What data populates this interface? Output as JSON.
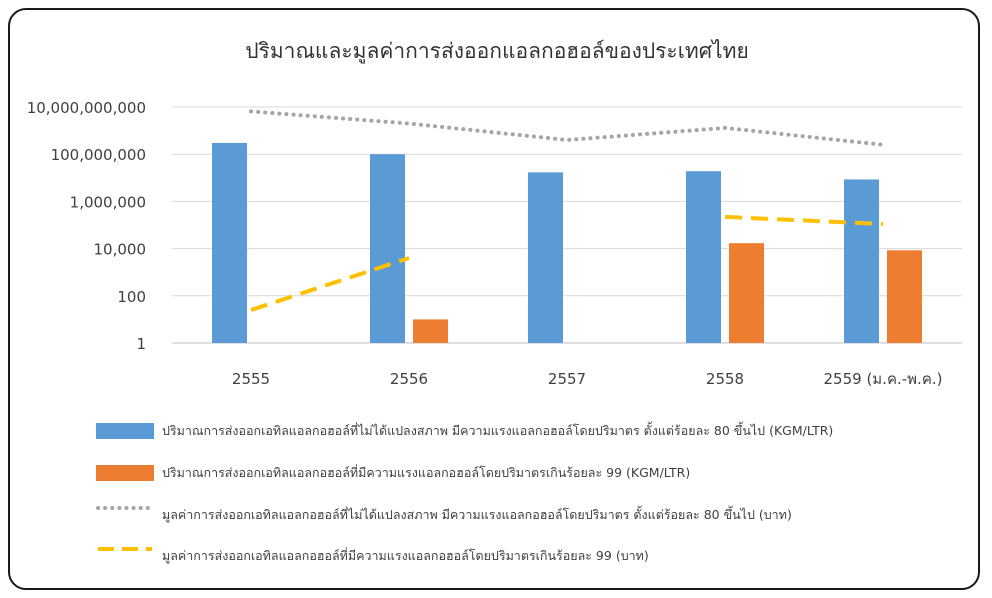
{
  "chart_data": {
    "type": "bar",
    "title": "ปริมาณและมูลค่าการส่งออกแอลกอฮอล์ของประเทศไทย",
    "y_scale": "log10",
    "ylim": [
      1,
      10000000000
    ],
    "y_ticks": [
      "1",
      "100",
      "10,000",
      "1,000,000",
      "100,000,000",
      "10,000,000,000"
    ],
    "categories": [
      "2555",
      "2556",
      "2557",
      "2558",
      "2559 (ม.ค.-พ.ค.)"
    ],
    "grid": true,
    "legend_position": "bottom",
    "series": [
      {
        "name": "ปริมาณการส่งออกเอทิลแอลกอฮอล์ที่ไม่ได้แปลงสภาพ มีความแรงแอลกอฮอล์โดยปริมาตร ตั้งแต่ร้อยละ 80 ขึ้นไป (KGM/LTR)",
        "kind": "bar",
        "color": "#5b9bd5",
        "values": [
          300000000,
          100000000,
          17000000,
          19000000,
          8500000
        ]
      },
      {
        "name": "ปริมาณการส่งออกเอทิลแอลกอฮอล์ที่มีความแรงแอลกอฮอล์โดยปริมาตรเกินร้อยละ 99  (KGM/LTR)",
        "kind": "bar",
        "color": "#ed7d31",
        "values": [
          null,
          10,
          null,
          17000,
          8500
        ]
      },
      {
        "name": "มูลค่าการส่งออกเอทิลแอลกอฮอล์ที่ไม่ได้แปลงสภาพ มีความแรงแอลกอฮอล์โดยปริมาตร ตั้งแต่ร้อยละ 80 ขึ้นไป (บาท)",
        "kind": "line",
        "style": "dotted",
        "color": "#a5a5a5",
        "values": [
          6500000000,
          2000000000,
          400000000,
          1300000000,
          250000000
        ]
      },
      {
        "name": "มูลค่าการส่งออกเอทิลแอลกอฮอล์ที่มีความแรงแอลกอฮอล์โดยปริมาตรเกินร้อยละ 99  (บาท)",
        "kind": "line",
        "style": "dashed",
        "color": "#ffc000",
        "values": [
          25,
          4000,
          null,
          220000,
          110000
        ]
      }
    ]
  }
}
